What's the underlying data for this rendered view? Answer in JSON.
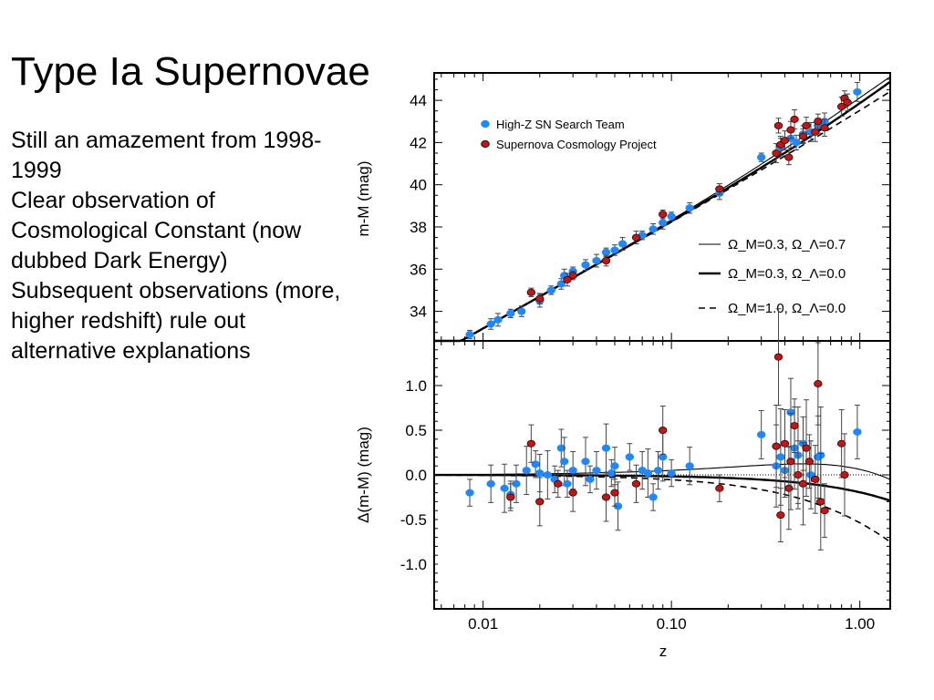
{
  "slide": {
    "title": "Type Ia Supernovae",
    "bullets": [
      "Still an amazement from 1998-1999",
      "Clear observation of Cosmological Constant (now dubbed Dark Energy)",
      "Subsequent observations (more, higher redshift) rule out alternative explanations"
    ]
  },
  "colors": {
    "high_z": "#1e88ff",
    "scp": "#cc1111",
    "axes": "#000000"
  },
  "chart_data": [
    {
      "type": "scatter",
      "ylabel": "m-M (mag)",
      "xscale": "log",
      "xlim": [
        0.0055,
        1.45
      ],
      "ylim": [
        32.6,
        45.3
      ],
      "yticks": [
        "34",
        "36",
        "38",
        "40",
        "42",
        "44"
      ],
      "legend_placement": "top-left",
      "series": [
        {
          "name": "High-Z SN Search Team",
          "color": "#1e88ff",
          "points": [
            [
              0.0085,
              32.9
            ],
            [
              0.011,
              33.4
            ],
            [
              0.012,
              33.6
            ],
            [
              0.014,
              33.9
            ],
            [
              0.016,
              34.0
            ],
            [
              0.02,
              34.5
            ],
            [
              0.023,
              35.0
            ],
            [
              0.026,
              35.3
            ],
            [
              0.027,
              35.7
            ],
            [
              0.03,
              35.9
            ],
            [
              0.035,
              36.2
            ],
            [
              0.04,
              36.4
            ],
            [
              0.045,
              36.8
            ],
            [
              0.05,
              36.9
            ],
            [
              0.055,
              37.2
            ],
            [
              0.07,
              37.6
            ],
            [
              0.08,
              37.9
            ],
            [
              0.09,
              38.2
            ],
            [
              0.1,
              38.5
            ],
            [
              0.125,
              38.9
            ],
            [
              0.18,
              39.6
            ],
            [
              0.3,
              41.3
            ],
            [
              0.38,
              41.8
            ],
            [
              0.43,
              42.2
            ],
            [
              0.46,
              42.0
            ],
            [
              0.5,
              42.4
            ],
            [
              0.55,
              42.5
            ],
            [
              0.6,
              42.8
            ],
            [
              0.65,
              43.0
            ],
            [
              0.97,
              44.4
            ]
          ]
        },
        {
          "name": "Supernova Cosmology Project",
          "color": "#cc1111",
          "points": [
            [
              0.018,
              34.9
            ],
            [
              0.02,
              34.6
            ],
            [
              0.028,
              35.5
            ],
            [
              0.03,
              35.7
            ],
            [
              0.045,
              36.4
            ],
            [
              0.065,
              37.5
            ],
            [
              0.09,
              38.6
            ],
            [
              0.18,
              39.8
            ],
            [
              0.36,
              41.5
            ],
            [
              0.37,
              42.8
            ],
            [
              0.38,
              41.9
            ],
            [
              0.4,
              42.1
            ],
            [
              0.42,
              41.3
            ],
            [
              0.43,
              42.6
            ],
            [
              0.45,
              43.1
            ],
            [
              0.5,
              42.3
            ],
            [
              0.52,
              42.8
            ],
            [
              0.58,
              42.5
            ],
            [
              0.6,
              43.0
            ],
            [
              0.65,
              42.7
            ],
            [
              0.8,
              43.7
            ],
            [
              0.83,
              44.1
            ],
            [
              0.86,
              43.9
            ]
          ]
        }
      ],
      "model_curves": [
        {
          "label": "Ω_M=0.3, Ω_Λ=0.7",
          "om": 0.3,
          "ol": 0.7,
          "style": "thin"
        },
        {
          "label": "Ω_M=0.3, Ω_Λ=0.0",
          "om": 0.3,
          "ol": 0.0,
          "style": "thick"
        },
        {
          "label": "Ω_M=1.0, Ω_Λ=0.0",
          "om": 1.0,
          "ol": 0.0,
          "style": "dashed"
        }
      ]
    },
    {
      "type": "scatter",
      "xlabel": "z",
      "ylabel": "Δ(m-M) (mag)",
      "xscale": "log",
      "xlim": [
        0.0055,
        1.45
      ],
      "ylim": [
        -1.5,
        1.5
      ],
      "xticks": [
        "0.01",
        "0.10",
        "1.00"
      ],
      "yticks": [
        "1.0",
        "0.5",
        "0.0",
        "-0.5",
        "-1.0"
      ],
      "series": [
        {
          "name": "High-Z SN Search Team",
          "color": "#1e88ff",
          "points": [
            [
              0.0085,
              -0.2
            ],
            [
              0.011,
              -0.1
            ],
            [
              0.013,
              -0.15
            ],
            [
              0.014,
              -0.22
            ],
            [
              0.015,
              -0.1
            ],
            [
              0.017,
              0.05
            ],
            [
              0.019,
              0.12
            ],
            [
              0.02,
              0.02
            ],
            [
              0.022,
              0.0
            ],
            [
              0.024,
              -0.05
            ],
            [
              0.026,
              0.3
            ],
            [
              0.027,
              0.15
            ],
            [
              0.028,
              -0.1
            ],
            [
              0.03,
              0.05
            ],
            [
              0.035,
              0.15
            ],
            [
              0.037,
              -0.05
            ],
            [
              0.04,
              0.05
            ],
            [
              0.045,
              0.3
            ],
            [
              0.048,
              0.02
            ],
            [
              0.05,
              0.1
            ],
            [
              0.052,
              -0.35
            ],
            [
              0.06,
              0.2
            ],
            [
              0.07,
              0.05
            ],
            [
              0.075,
              0.02
            ],
            [
              0.08,
              -0.25
            ],
            [
              0.085,
              0.05
            ],
            [
              0.09,
              0.2
            ],
            [
              0.1,
              0.02
            ],
            [
              0.125,
              0.1
            ],
            [
              0.3,
              0.45
            ],
            [
              0.36,
              0.1
            ],
            [
              0.38,
              0.2
            ],
            [
              0.4,
              0.05
            ],
            [
              0.43,
              0.7
            ],
            [
              0.45,
              0.3
            ],
            [
              0.47,
              0.22
            ],
            [
              0.5,
              0.35
            ],
            [
              0.55,
              0.0
            ],
            [
              0.6,
              0.2
            ],
            [
              0.62,
              0.22
            ],
            [
              0.97,
              0.48
            ]
          ]
        },
        {
          "name": "Supernova Cosmology Project",
          "color": "#cc1111",
          "points": [
            [
              0.014,
              -0.25
            ],
            [
              0.018,
              0.35
            ],
            [
              0.02,
              -0.3
            ],
            [
              0.025,
              -0.1
            ],
            [
              0.03,
              -0.2
            ],
            [
              0.045,
              -0.25
            ],
            [
              0.05,
              -0.2
            ],
            [
              0.065,
              -0.1
            ],
            [
              0.09,
              0.5
            ],
            [
              0.18,
              -0.15
            ],
            [
              0.36,
              0.32
            ],
            [
              0.37,
              1.32
            ],
            [
              0.38,
              -0.45
            ],
            [
              0.4,
              0.35
            ],
            [
              0.42,
              -0.15
            ],
            [
              0.43,
              0.15
            ],
            [
              0.45,
              0.55
            ],
            [
              0.47,
              0.0
            ],
            [
              0.5,
              -0.1
            ],
            [
              0.52,
              0.3
            ],
            [
              0.54,
              0.15
            ],
            [
              0.58,
              -0.05
            ],
            [
              0.6,
              1.02
            ],
            [
              0.62,
              -0.3
            ],
            [
              0.65,
              -0.4
            ],
            [
              0.8,
              0.35
            ],
            [
              0.83,
              0.0
            ]
          ]
        }
      ]
    }
  ]
}
